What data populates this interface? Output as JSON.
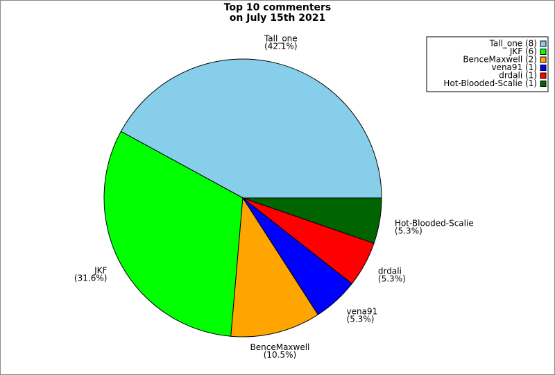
{
  "chart_data": {
    "type": "pie",
    "title": [
      "Top 10 commenters",
      "on July 15th 2021"
    ],
    "categories": [
      "Tall_one",
      "JKF",
      "BenceMaxwell",
      "vena91",
      "drdali",
      "Hot-Blooded-Scalie"
    ],
    "values": [
      42.1,
      31.6,
      10.5,
      5.3,
      5.3,
      5.3
    ],
    "value_labels": [
      "(42.1%)",
      "(31.6%)",
      "(10.5%)",
      "(5.3%)",
      "(5.3%)",
      "(5.3%)"
    ],
    "legend_labels": [
      "Tall_one (8)",
      "JKF (6)",
      "BenceMaxwell (2)",
      "vena91 (1)",
      "drdali (1)",
      "Hot-Blooded-Scalie (1)"
    ],
    "colors": [
      "#87ceeb",
      "#00ff00",
      "#ffa500",
      "#0000ff",
      "#ff0000",
      "#006400"
    ],
    "legend": "upper right"
  }
}
